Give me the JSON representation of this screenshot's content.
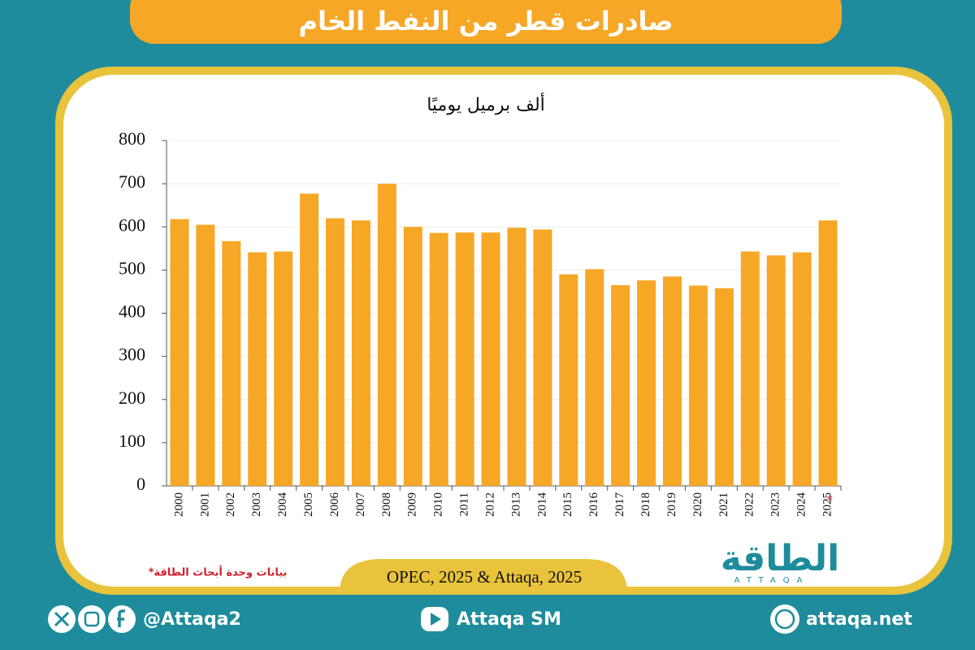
{
  "chart_data": {
    "type": "bar",
    "title": "صادرات قطر من النفط الخام",
    "subtitle": "ألف برميل يوميًا",
    "categories": [
      "2000",
      "2001",
      "2002",
      "2003",
      "2004",
      "2005",
      "2006",
      "2007",
      "2008",
      "2009",
      "2010",
      "2011",
      "2012",
      "2013",
      "2014",
      "2015",
      "2016",
      "2017",
      "2018",
      "2019",
      "2020",
      "2021",
      "2022",
      "2023",
      "2024",
      "2025"
    ],
    "values": [
      618,
      605,
      567,
      541,
      543,
      677,
      620,
      615,
      700,
      600,
      586,
      587,
      587,
      598,
      594,
      490,
      502,
      465,
      476,
      485,
      464,
      458,
      543,
      534,
      541,
      615
    ],
    "estimate_mark": "*",
    "color": "#f6a726",
    "ylim": [
      0,
      800
    ],
    "yticks": [
      0,
      100,
      200,
      300,
      400,
      500,
      600,
      700,
      800
    ],
    "grid": true,
    "note": "*بيانات وحدة أبحاث الطاقة",
    "source": "OPEC, 2025 & Attaqa, 2025"
  },
  "logo": {
    "arabic": "الطاقة",
    "latin": "ATTAQA"
  },
  "footer": {
    "handle": "@Attaqa2",
    "youtube": "Attaqa SM",
    "website": "attaqa.net"
  }
}
